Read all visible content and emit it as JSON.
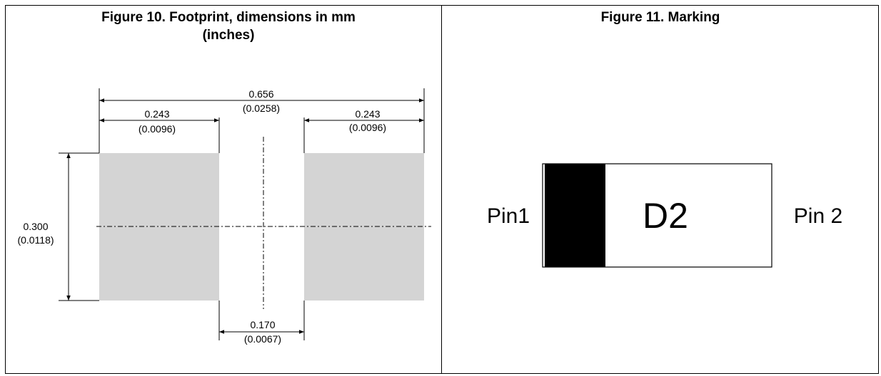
{
  "figure10": {
    "title_line1": "Figure 10. Footprint, dimensions in mm",
    "title_line2": "(inches)",
    "dims": {
      "overall_width": {
        "mm": "0.656",
        "inch": "(0.0258)"
      },
      "left_pad_width": {
        "mm": "0.243",
        "inch": "(0.0096)"
      },
      "right_pad_width": {
        "mm": "0.243",
        "inch": "(0.0096)"
      },
      "pad_height": {
        "mm": "0.300",
        "inch": "(0.0118)"
      },
      "gap": {
        "mm": "0.170",
        "inch": "(0.0067)"
      }
    },
    "pad_color": "#d4d4d4"
  },
  "figure11": {
    "title": "Figure 11. Marking",
    "pin1_label": "Pin1",
    "pin2_label": "Pin 2",
    "marking": "D2",
    "band_color": "#000000"
  }
}
